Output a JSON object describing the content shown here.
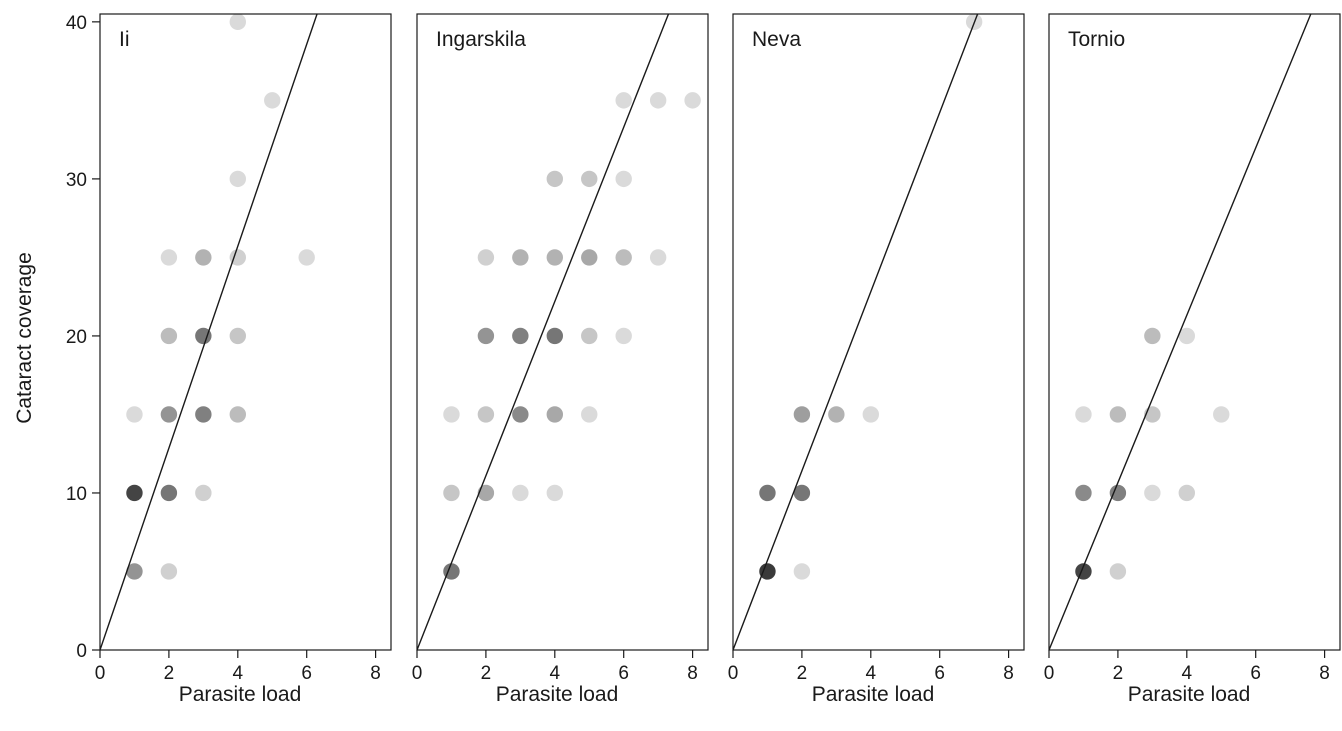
{
  "chart_data": [
    {
      "type": "scatter",
      "title": "Ii",
      "xlabel": "Parasite load",
      "ylabel": "Cataract coverage",
      "xlim": [
        0,
        8.5
      ],
      "ylim": [
        0,
        40.5
      ],
      "xticks": [
        "0",
        "2",
        "4",
        "6",
        "8"
      ],
      "yticks": [
        "0",
        "10",
        "20",
        "30",
        "40"
      ],
      "fit_line": {
        "x": [
          0,
          6.3
        ],
        "y": [
          0,
          40.5
        ]
      },
      "points": [
        {
          "x": 1,
          "y": 5,
          "shade": 0.45
        },
        {
          "x": 1,
          "y": 10,
          "shade": 0.85
        },
        {
          "x": 1,
          "y": 15,
          "shade": 0.1
        },
        {
          "x": 2,
          "y": 5,
          "shade": 0.15
        },
        {
          "x": 2,
          "y": 10,
          "shade": 0.6
        },
        {
          "x": 2,
          "y": 15,
          "shade": 0.45
        },
        {
          "x": 2,
          "y": 20,
          "shade": 0.25
        },
        {
          "x": 2,
          "y": 25,
          "shade": 0.1
        },
        {
          "x": 3,
          "y": 10,
          "shade": 0.15
        },
        {
          "x": 3,
          "y": 15,
          "shade": 0.55
        },
        {
          "x": 3,
          "y": 20,
          "shade": 0.6
        },
        {
          "x": 3,
          "y": 25,
          "shade": 0.3
        },
        {
          "x": 4,
          "y": 15,
          "shade": 0.25
        },
        {
          "x": 4,
          "y": 20,
          "shade": 0.2
        },
        {
          "x": 4,
          "y": 25,
          "shade": 0.15
        },
        {
          "x": 4,
          "y": 30,
          "shade": 0.1
        },
        {
          "x": 4,
          "y": 40,
          "shade": 0.1
        },
        {
          "x": 5,
          "y": 35,
          "shade": 0.1
        },
        {
          "x": 6,
          "y": 25,
          "shade": 0.1
        }
      ]
    },
    {
      "type": "scatter",
      "title": "Ingarskila",
      "xlabel": "Parasite load",
      "ylabel": "",
      "xlim": [
        0,
        8.5
      ],
      "ylim": [
        0,
        40.5
      ],
      "xticks": [
        "0",
        "2",
        "4",
        "6",
        "8"
      ],
      "yticks": [],
      "fit_line": {
        "x": [
          0,
          7.3
        ],
        "y": [
          0,
          40.5
        ]
      },
      "points": [
        {
          "x": 1,
          "y": 5,
          "shade": 0.6
        },
        {
          "x": 1,
          "y": 10,
          "shade": 0.2
        },
        {
          "x": 1,
          "y": 15,
          "shade": 0.1
        },
        {
          "x": 2,
          "y": 10,
          "shade": 0.35
        },
        {
          "x": 2,
          "y": 15,
          "shade": 0.2
        },
        {
          "x": 2,
          "y": 20,
          "shade": 0.45
        },
        {
          "x": 2,
          "y": 25,
          "shade": 0.15
        },
        {
          "x": 3,
          "y": 10,
          "shade": 0.1
        },
        {
          "x": 3,
          "y": 15,
          "shade": 0.5
        },
        {
          "x": 3,
          "y": 20,
          "shade": 0.55
        },
        {
          "x": 3,
          "y": 25,
          "shade": 0.3
        },
        {
          "x": 4,
          "y": 10,
          "shade": 0.1
        },
        {
          "x": 4,
          "y": 15,
          "shade": 0.35
        },
        {
          "x": 4,
          "y": 20,
          "shade": 0.6
        },
        {
          "x": 4,
          "y": 25,
          "shade": 0.3
        },
        {
          "x": 4,
          "y": 30,
          "shade": 0.2
        },
        {
          "x": 5,
          "y": 15,
          "shade": 0.1
        },
        {
          "x": 5,
          "y": 20,
          "shade": 0.2
        },
        {
          "x": 5,
          "y": 25,
          "shade": 0.35
        },
        {
          "x": 5,
          "y": 30,
          "shade": 0.2
        },
        {
          "x": 6,
          "y": 20,
          "shade": 0.1
        },
        {
          "x": 6,
          "y": 25,
          "shade": 0.25
        },
        {
          "x": 6,
          "y": 30,
          "shade": 0.1
        },
        {
          "x": 6,
          "y": 35,
          "shade": 0.1
        },
        {
          "x": 7,
          "y": 25,
          "shade": 0.1
        },
        {
          "x": 7,
          "y": 35,
          "shade": 0.1
        },
        {
          "x": 8,
          "y": 35,
          "shade": 0.1
        }
      ]
    },
    {
      "type": "scatter",
      "title": "Neva",
      "xlabel": "Parasite load",
      "ylabel": "",
      "xlim": [
        0,
        8.5
      ],
      "ylim": [
        0,
        40.5
      ],
      "xticks": [
        "0",
        "2",
        "4",
        "6",
        "8"
      ],
      "yticks": [],
      "fit_line": {
        "x": [
          0,
          7.1
        ],
        "y": [
          0,
          40.5
        ]
      },
      "points": [
        {
          "x": 1,
          "y": 5,
          "shade": 0.9
        },
        {
          "x": 1,
          "y": 10,
          "shade": 0.6
        },
        {
          "x": 2,
          "y": 5,
          "shade": 0.1
        },
        {
          "x": 2,
          "y": 10,
          "shade": 0.6
        },
        {
          "x": 2,
          "y": 15,
          "shade": 0.4
        },
        {
          "x": 3,
          "y": 15,
          "shade": 0.3
        },
        {
          "x": 4,
          "y": 15,
          "shade": 0.1
        },
        {
          "x": 7,
          "y": 40,
          "shade": 0.1
        }
      ]
    },
    {
      "type": "scatter",
      "title": "Tornio",
      "xlabel": "Parasite load",
      "ylabel": "",
      "xlim": [
        0,
        8.5
      ],
      "ylim": [
        0,
        40.5
      ],
      "xticks": [
        "0",
        "2",
        "4",
        "6",
        "8"
      ],
      "yticks": [],
      "fit_line": {
        "x": [
          0,
          7.6
        ],
        "y": [
          0,
          40.5
        ]
      },
      "points": [
        {
          "x": 1,
          "y": 5,
          "shade": 0.85
        },
        {
          "x": 1,
          "y": 10,
          "shade": 0.5
        },
        {
          "x": 1,
          "y": 15,
          "shade": 0.1
        },
        {
          "x": 2,
          "y": 5,
          "shade": 0.15
        },
        {
          "x": 2,
          "y": 10,
          "shade": 0.55
        },
        {
          "x": 2,
          "y": 15,
          "shade": 0.25
        },
        {
          "x": 3,
          "y": 10,
          "shade": 0.1
        },
        {
          "x": 3,
          "y": 15,
          "shade": 0.2
        },
        {
          "x": 3,
          "y": 20,
          "shade": 0.25
        },
        {
          "x": 4,
          "y": 10,
          "shade": 0.15
        },
        {
          "x": 4,
          "y": 20,
          "shade": 0.1
        },
        {
          "x": 5,
          "y": 15,
          "shade": 0.1
        }
      ]
    }
  ]
}
